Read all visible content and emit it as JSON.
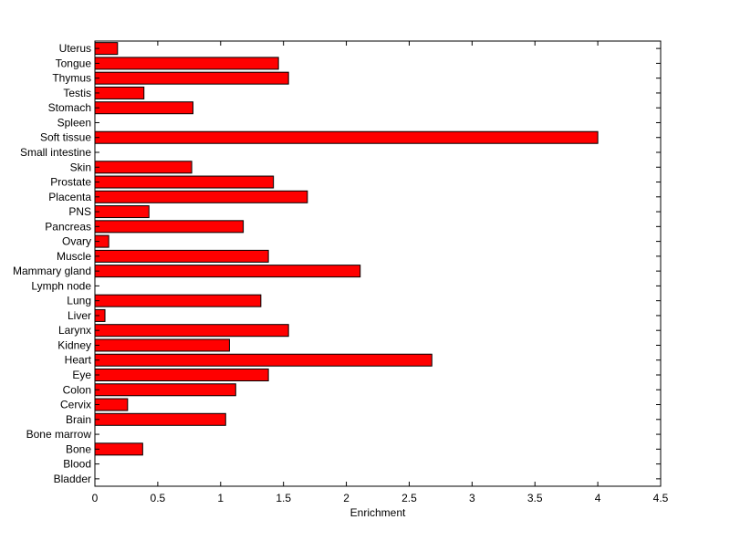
{
  "chart_data": {
    "type": "bar",
    "orientation": "horizontal",
    "title": "",
    "xlabel": "Enrichment",
    "ylabel": "",
    "xlim": [
      0,
      4.5
    ],
    "xticks": [
      0,
      0.5,
      1,
      1.5,
      2,
      2.5,
      3,
      3.5,
      4,
      4.5
    ],
    "xtick_labels": [
      "0",
      "0.5",
      "1",
      "1.5",
      "2",
      "2.5",
      "3",
      "3.5",
      "4",
      "4.5"
    ],
    "grid": false,
    "legend": "none",
    "bar_color": "#ff0000",
    "categories": [
      "Uterus",
      "Tongue",
      "Thymus",
      "Testis",
      "Stomach",
      "Spleen",
      "Soft tissue",
      "Small intestine",
      "Skin",
      "Prostate",
      "Placenta",
      "PNS",
      "Pancreas",
      "Ovary",
      "Muscle",
      "Mammary gland",
      "Lymph node",
      "Lung",
      "Liver",
      "Larynx",
      "Kidney",
      "Heart",
      "Eye",
      "Colon",
      "Cervix",
      "Brain",
      "Bone marrow",
      "Bone",
      "Blood",
      "Bladder"
    ],
    "values": [
      0.18,
      1.46,
      1.54,
      0.39,
      0.78,
      0,
      4.0,
      0,
      0.77,
      1.42,
      1.69,
      0.43,
      1.18,
      0.11,
      1.38,
      2.11,
      0,
      1.32,
      0.08,
      1.54,
      1.07,
      2.68,
      1.38,
      1.12,
      0.26,
      1.04,
      0,
      0.38,
      0,
      0
    ]
  }
}
